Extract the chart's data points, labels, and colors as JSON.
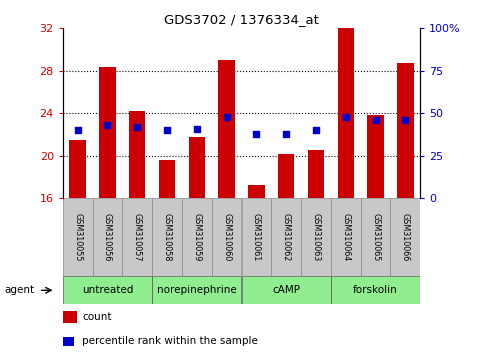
{
  "title": "GDS3702 / 1376334_at",
  "samples": [
    "GSM310055",
    "GSM310056",
    "GSM310057",
    "GSM310058",
    "GSM310059",
    "GSM310060",
    "GSM310061",
    "GSM310062",
    "GSM310063",
    "GSM310064",
    "GSM310065",
    "GSM310066"
  ],
  "counts": [
    21.5,
    28.4,
    24.2,
    19.6,
    21.8,
    29.0,
    17.2,
    20.2,
    20.5,
    32.0,
    23.8,
    28.7
  ],
  "percentile_ranks_pct": [
    40,
    43,
    42,
    40,
    41,
    48,
    38,
    38,
    40,
    48,
    46,
    46
  ],
  "groups": [
    {
      "label": "untreated",
      "start": 0,
      "end": 3
    },
    {
      "label": "norepinephrine",
      "start": 3,
      "end": 6
    },
    {
      "label": "cAMP",
      "start": 6,
      "end": 9
    },
    {
      "label": "forskolin",
      "start": 9,
      "end": 12
    }
  ],
  "ylim_left": [
    16,
    32
  ],
  "ylim_right": [
    0,
    100
  ],
  "yticks_left": [
    16,
    20,
    24,
    28,
    32
  ],
  "yticks_right": [
    0,
    25,
    50,
    75,
    100
  ],
  "bar_color": "#cc0000",
  "dot_color": "#0000cc",
  "bar_bottom": 16,
  "tick_label_color_left": "#cc0000",
  "tick_label_color_right": "#0000cc"
}
